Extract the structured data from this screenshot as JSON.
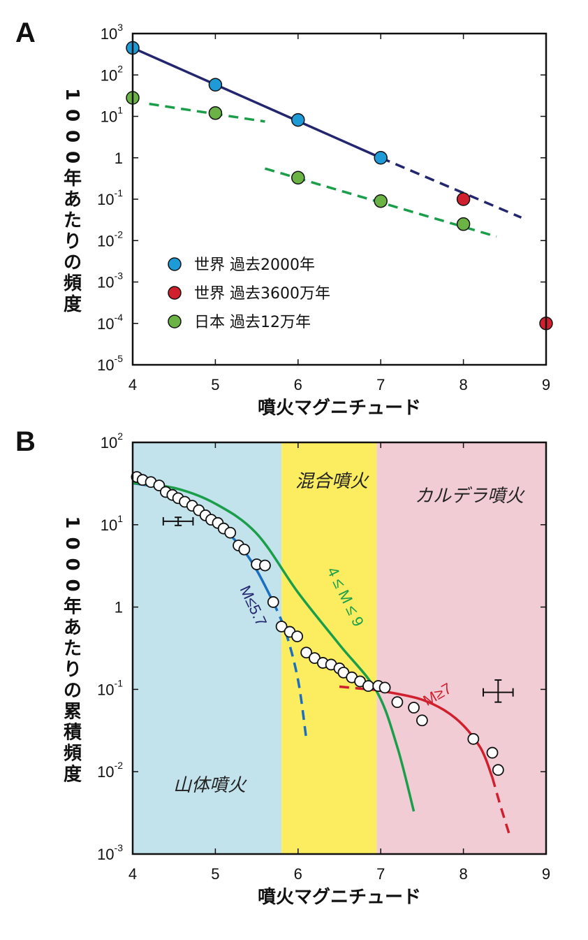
{
  "chart_data": [
    {
      "panel": "A",
      "type": "scatter",
      "xlabel": "噴火マグニチュード",
      "ylabel": "1000年あたりの頻度",
      "yscale": "log",
      "xlim": [
        4,
        9
      ],
      "ylim": [
        1e-05,
        1000
      ],
      "x_ticks": [
        4,
        5,
        6,
        7,
        8,
        9
      ],
      "y_ticks": [
        {
          "value": 1000,
          "base": "10",
          "exp": "3"
        },
        {
          "value": 100,
          "base": "10",
          "exp": "2"
        },
        {
          "value": 10,
          "base": "10",
          "exp": "1"
        },
        {
          "value": 1,
          "base": "1",
          "exp": ""
        },
        {
          "value": 0.1,
          "base": "10",
          "exp": "-1"
        },
        {
          "value": 0.01,
          "base": "10",
          "exp": "-2"
        },
        {
          "value": 0.001,
          "base": "10",
          "exp": "-3"
        },
        {
          "value": 0.0001,
          "base": "10",
          "exp": "-4"
        },
        {
          "value": 1e-05,
          "base": "10",
          "exp": "-5"
        }
      ],
      "legend_position": "lower-left",
      "series": [
        {
          "name": "世界 過去2000年",
          "color": "#1e9ad6",
          "x": [
            4,
            5,
            6,
            7
          ],
          "y": [
            450,
            58,
            8.2,
            1.0
          ]
        },
        {
          "name": "世界 過去3600万年",
          "color": "#d0202e",
          "x": [
            8,
            9
          ],
          "y": [
            0.1,
            0.0001
          ]
        },
        {
          "name": "日本 過去12万年",
          "color": "#6ab344",
          "x": [
            4,
            5,
            6,
            7,
            8
          ],
          "y": [
            28,
            12,
            0.33,
            0.09,
            0.025
          ]
        }
      ],
      "fit_lines": [
        {
          "color": "#23266e",
          "style": "solid",
          "x": [
            4,
            7
          ],
          "y": [
            450,
            1.0
          ]
        },
        {
          "color": "#23266e",
          "style": "dashed",
          "x": [
            7,
            8.7
          ],
          "y": [
            1.0,
            0.036
          ]
        },
        {
          "color": "#1a9e4a",
          "style": "dashed",
          "x": [
            4.2,
            5.6
          ],
          "y": [
            20,
            7.5
          ]
        },
        {
          "color": "#1a9e4a",
          "style": "dashed",
          "x": [
            5.6,
            8.4
          ],
          "y": [
            0.55,
            0.0125
          ]
        }
      ]
    },
    {
      "panel": "B",
      "type": "scatter",
      "xlabel": "噴火マグニチュード",
      "ylabel": "1000年あたりの累積頻度",
      "yscale": "log",
      "xlim": [
        4,
        9
      ],
      "ylim": [
        0.001,
        100
      ],
      "x_ticks": [
        4,
        5,
        6,
        7,
        8,
        9
      ],
      "y_ticks": [
        {
          "value": 100,
          "base": "10",
          "exp": "2"
        },
        {
          "value": 10,
          "base": "10",
          "exp": "1"
        },
        {
          "value": 1,
          "base": "1",
          "exp": ""
        },
        {
          "value": 0.1,
          "base": "10",
          "exp": "-1"
        },
        {
          "value": 0.01,
          "base": "10",
          "exp": "-2"
        },
        {
          "value": 0.001,
          "base": "10",
          "exp": "-3"
        }
      ],
      "regions": [
        {
          "label": "山体噴火",
          "color": "#c2e2ec",
          "x": [
            4,
            5.8
          ]
        },
        {
          "label": "混合噴火",
          "color": "#fcec60",
          "x": [
            5.8,
            6.95
          ]
        },
        {
          "label": "カルデラ噴火",
          "color": "#f1ccd5",
          "x": [
            6.95,
            9
          ]
        }
      ],
      "points": {
        "x": [
          4.05,
          4.12,
          4.22,
          4.32,
          4.4,
          4.48,
          4.55,
          4.63,
          4.72,
          4.8,
          4.88,
          4.95,
          5.03,
          5.1,
          5.18,
          5.28,
          5.35,
          5.5,
          5.6,
          5.7,
          5.8,
          5.9,
          5.99,
          6.1,
          6.2,
          6.3,
          6.4,
          6.5,
          6.55,
          6.65,
          6.75,
          6.85,
          6.97,
          7.05,
          7.2,
          7.4,
          7.5,
          8.12,
          8.35,
          8.42
        ],
        "y": [
          38,
          35,
          33,
          30,
          25,
          23,
          21,
          19,
          17,
          15,
          13,
          11.5,
          10.5,
          9,
          8,
          5.6,
          5,
          3.3,
          3.2,
          1.15,
          0.58,
          0.5,
          0.44,
          0.28,
          0.24,
          0.21,
          0.2,
          0.18,
          0.16,
          0.14,
          0.125,
          0.11,
          0.11,
          0.105,
          0.07,
          0.06,
          0.042,
          0.025,
          0.017,
          0.0105
        ]
      },
      "error_bars": [
        {
          "x": 4.55,
          "y": 11,
          "xerr": 0.18,
          "y_range": [
            9.8,
            12.3
          ]
        },
        {
          "x": 8.42,
          "y": 0.092,
          "xerr": 0.18,
          "y_range": [
            0.07,
            0.13
          ]
        }
      ],
      "curves": [
        {
          "label": "M≤5.7",
          "color": "#1a6fc0",
          "x": [
            4,
            4.5,
            5,
            5.3,
            5.5,
            5.7
          ],
          "y": [
            32,
            25,
            11,
            5.5,
            2.8,
            1.15
          ]
        },
        {
          "label": "",
          "color": "#1a6fc0",
          "style": "dashed",
          "x": [
            5.7,
            5.85,
            6.0,
            6.1
          ],
          "y": [
            1.15,
            0.5,
            0.13,
            0.025
          ]
        },
        {
          "label": "4 ≤ M ≤ 9",
          "color": "#1a9e4a",
          "x": [
            4,
            4.5,
            5,
            5.5,
            6,
            6.5,
            6.95,
            7.2,
            7.4
          ],
          "y": [
            32,
            28,
            18,
            7.8,
            1.5,
            0.35,
            0.095,
            0.02,
            0.0033
          ]
        },
        {
          "label": "",
          "color": "#d0202e",
          "style": "dashed",
          "x": [
            6.5,
            6.95
          ],
          "y": [
            0.108,
            0.098
          ]
        },
        {
          "label": "M≥7",
          "color": "#d0202e",
          "x": [
            6.95,
            7.5,
            7.9,
            8.2,
            8.35
          ],
          "y": [
            0.098,
            0.075,
            0.045,
            0.02,
            0.0085
          ]
        },
        {
          "label": "",
          "color": "#d0202e",
          "style": "dashed",
          "x": [
            8.35,
            8.45,
            8.55
          ],
          "y": [
            0.0085,
            0.0038,
            0.0018
          ]
        }
      ]
    }
  ],
  "labels": {
    "panel_a": "A",
    "panel_b": "B"
  }
}
